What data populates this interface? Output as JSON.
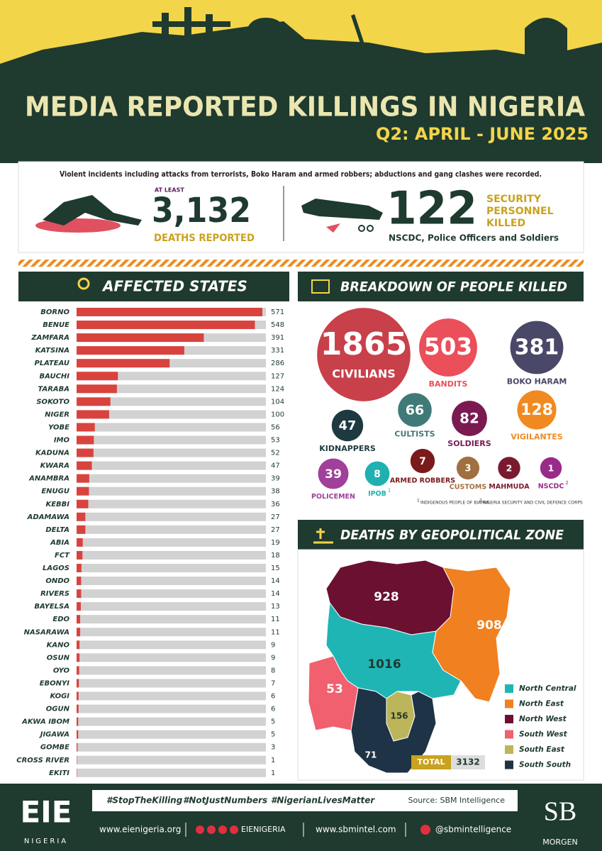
{
  "header": {
    "title": "MEDIA REPORTED KILLINGS IN NIGERIA",
    "subtitle": "Q2: APRIL - JUNE 2025"
  },
  "summary": {
    "note": "Violent incidents including attacks from terrorists, Boko Haram and armed robbers; abductions and gang clashes were recorded.",
    "deaths_prefix": "AT LEAST",
    "deaths": "3,132",
    "deaths_label": "DEATHS REPORTED",
    "security": "122",
    "security_label": [
      "SECURITY",
      "PERSONNEL",
      "KILLED"
    ],
    "security_note": "NSCDC, Police Officers and Soldiers"
  },
  "chart_data": [
    {
      "type": "bar",
      "title": "AFFECTED STATES",
      "color": "#d9433e",
      "track_color": "#d2d2d2",
      "categories": [
        "BORNO",
        "BENUE",
        "ZAMFARA",
        "KATSINA",
        "PLATEAU",
        "BAUCHI",
        "TARABA",
        "SOKOTO",
        "NIGER",
        "YOBE",
        "IMO",
        "KADUNA",
        "KWARA",
        "ANAMBRA",
        "ENUGU",
        "KEBBI",
        "ADAMAWA",
        "DELTA",
        "ABIA",
        "FCT",
        "LAGOS",
        "ONDO",
        "RIVERS",
        "BAYELSA",
        "EDO",
        "NASARAWA",
        "KANO",
        "OSUN",
        "OYO",
        "EBONYI",
        "KOGI",
        "OGUN",
        "AKWA IBOM",
        "JIGAWA",
        "GOMBE",
        "CROSS RIVER",
        "EKITI"
      ],
      "values": [
        571,
        548,
        391,
        331,
        286,
        127,
        124,
        104,
        100,
        56,
        53,
        52,
        47,
        39,
        38,
        36,
        27,
        27,
        19,
        18,
        15,
        14,
        14,
        13,
        11,
        11,
        9,
        9,
        8,
        7,
        6,
        6,
        5,
        5,
        3,
        1,
        1
      ]
    },
    {
      "type": "bubble",
      "title": "BREAKDOWN OF PEOPLE KILLED",
      "categories": [
        "CIVILIANS",
        "BANDITS",
        "BOKO HARAM",
        "KIDNAPPERS",
        "CULTISTS",
        "SOLDIERS",
        "VIGILANTES",
        "POLICEMEN",
        "IPOB",
        "ARMED ROBBERS",
        "CUSTOMS",
        "MAHMUDA",
        "NSCDC"
      ],
      "values": [
        1865,
        503,
        381,
        47,
        66,
        82,
        128,
        39,
        8,
        7,
        3,
        2,
        1
      ],
      "colors": [
        "#c8404a",
        "#ea4f5a",
        "#4a4868",
        "#1e3a40",
        "#3f7a78",
        "#7a1a50",
        "#f08a20",
        "#a0409a",
        "#20b0b0",
        "#7a1a1a",
        "#a07040",
        "#7a1a30",
        "#9a2a8a"
      ],
      "footnotes": [
        {
          "mark": "1",
          "text": "INDIGENOUS PEOPLE OF BIAFRA"
        },
        {
          "mark": "2",
          "text": "NIGERIA SECURITY AND CIVIL DEFENCE CORPS"
        }
      ]
    },
    {
      "type": "map",
      "title": "DEATHS BY GEOPOLITICAL ZONE",
      "categories": [
        "North Central",
        "North East",
        "North West",
        "South West",
        "South East",
        "South South"
      ],
      "values": [
        1016,
        908,
        928,
        53,
        156,
        71
      ],
      "colors": [
        "#1fb5b5",
        "#f08020",
        "#6b1030",
        "#f0606e",
        "#bdb55a",
        "#1e3345"
      ],
      "total_label": "TOTAL",
      "total": 3132
    }
  ],
  "footer": {
    "hashtags": [
      "#StopTheKilling",
      "#NotJustNumbers",
      "#NigerianLivesMatter"
    ],
    "source": "Source: SBM Intelligence",
    "eie_logo": "EIE",
    "eie_sub": "NIGERIA",
    "eie_site": "www.eienigeria.org",
    "eie_handle": "EIENIGERIA",
    "sbm_site": "www.sbmintel.com",
    "sbm_handle": "@sbmintelligence",
    "sb_logo": "SB",
    "sb_sub": "MORGEN"
  }
}
